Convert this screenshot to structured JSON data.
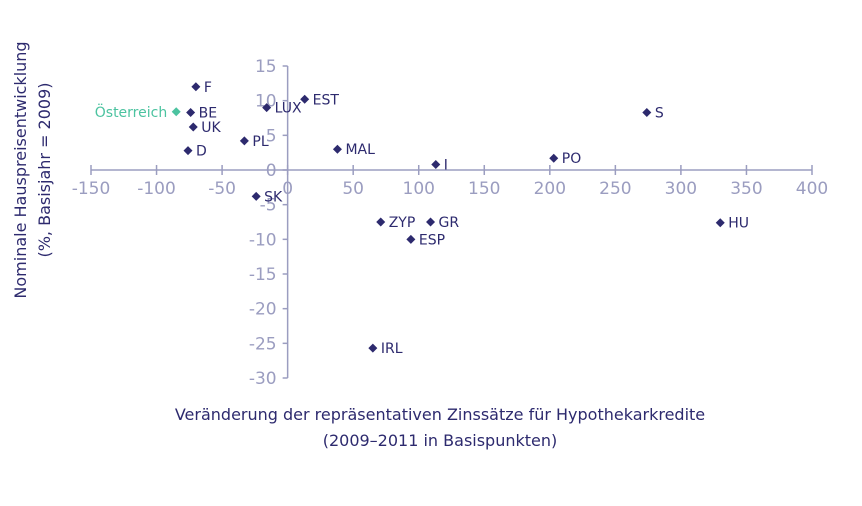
{
  "chart_data": {
    "type": "scatter",
    "xlabel_line1": "Veränderung der repräsentativen Zinssätze für Hypothekarkredite",
    "xlabel_line2": "(2009–2011 in Basispunkten)",
    "ylabel_line1": "Nominale Hauspreisentwicklung",
    "ylabel_line2": "(%, Basisjahr = 2009)",
    "xlim": [
      -150,
      400
    ],
    "ylim": [
      -30,
      15
    ],
    "xticks": [
      -150,
      -100,
      -50,
      0,
      50,
      100,
      150,
      200,
      250,
      300,
      350,
      400
    ],
    "yticks": [
      15,
      10,
      5,
      0,
      -5,
      -10,
      -15,
      -20,
      -25,
      -30
    ],
    "grid": false,
    "colors": {
      "axis": "#9b9dc0",
      "point": "#2d2a6e",
      "highlight": "#4cc3a0"
    },
    "points": [
      {
        "label": "F",
        "x": -70,
        "y": 12,
        "highlight": false
      },
      {
        "label": "BE",
        "x": -74,
        "y": 8.3,
        "highlight": false
      },
      {
        "label": "UK",
        "x": -72,
        "y": 6.2,
        "highlight": false
      },
      {
        "label": "D",
        "x": -76,
        "y": 2.8,
        "highlight": false
      },
      {
        "label": "PL",
        "x": -33,
        "y": 4.2,
        "highlight": false
      },
      {
        "label": "LUX",
        "x": -16,
        "y": 9,
        "highlight": false
      },
      {
        "label": "SK",
        "x": -24,
        "y": -3.8,
        "highlight": false
      },
      {
        "label": "EST",
        "x": 13,
        "y": 10.2,
        "highlight": false
      },
      {
        "label": "MAL",
        "x": 38,
        "y": 3,
        "highlight": false
      },
      {
        "label": "I",
        "x": 113,
        "y": 0.8,
        "highlight": false
      },
      {
        "label": "PO",
        "x": 203,
        "y": 1.7,
        "highlight": false
      },
      {
        "label": "S",
        "x": 274,
        "y": 8.3,
        "highlight": false
      },
      {
        "label": "ZYP",
        "x": 71,
        "y": -7.5,
        "highlight": false
      },
      {
        "label": "GR",
        "x": 109,
        "y": -7.5,
        "highlight": false
      },
      {
        "label": "ESP",
        "x": 94,
        "y": -10,
        "highlight": false
      },
      {
        "label": "HU",
        "x": 330,
        "y": -7.6,
        "highlight": false
      },
      {
        "label": "IRL",
        "x": 65,
        "y": -25.7,
        "highlight": false
      },
      {
        "label": "Österreich",
        "x": -85,
        "y": 8.4,
        "highlight": true
      }
    ]
  }
}
